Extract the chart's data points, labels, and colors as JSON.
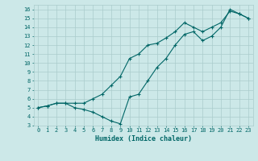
{
  "title": "",
  "xlabel": "Humidex (Indice chaleur)",
  "ylabel": "",
  "xlim": [
    -0.5,
    23.5
  ],
  "ylim": [
    3,
    16.5
  ],
  "yticks": [
    3,
    4,
    5,
    6,
    7,
    8,
    9,
    10,
    11,
    12,
    13,
    14,
    15,
    16
  ],
  "xticks": [
    0,
    1,
    2,
    3,
    4,
    5,
    6,
    7,
    8,
    9,
    10,
    11,
    12,
    13,
    14,
    15,
    16,
    17,
    18,
    19,
    20,
    21,
    22,
    23
  ],
  "background_color": "#cce8e8",
  "line_color": "#006666",
  "grid_color": "#aacccc",
  "line1_x": [
    0,
    1,
    2,
    3,
    4,
    5,
    6,
    7,
    8,
    9,
    10,
    11,
    12,
    13,
    14,
    15,
    16,
    17,
    18,
    19,
    20,
    21,
    22,
    23
  ],
  "line1_y": [
    5.0,
    5.2,
    5.5,
    5.5,
    5.5,
    5.5,
    6.0,
    6.5,
    7.5,
    8.5,
    10.5,
    11.0,
    12.0,
    12.2,
    12.8,
    13.5,
    14.5,
    14.0,
    13.5,
    14.0,
    14.5,
    15.8,
    15.5,
    15.0
  ],
  "line2_x": [
    0,
    1,
    2,
    3,
    4,
    5,
    6,
    7,
    8,
    9,
    10,
    11,
    12,
    13,
    14,
    15,
    16,
    17,
    18,
    19,
    20,
    21,
    22,
    23
  ],
  "line2_y": [
    5.0,
    5.2,
    5.5,
    5.5,
    5.0,
    4.8,
    4.5,
    4.0,
    3.5,
    3.2,
    6.2,
    6.5,
    8.0,
    9.5,
    10.5,
    12.0,
    13.2,
    13.5,
    12.5,
    13.0,
    14.0,
    16.0,
    15.5,
    15.0
  ]
}
